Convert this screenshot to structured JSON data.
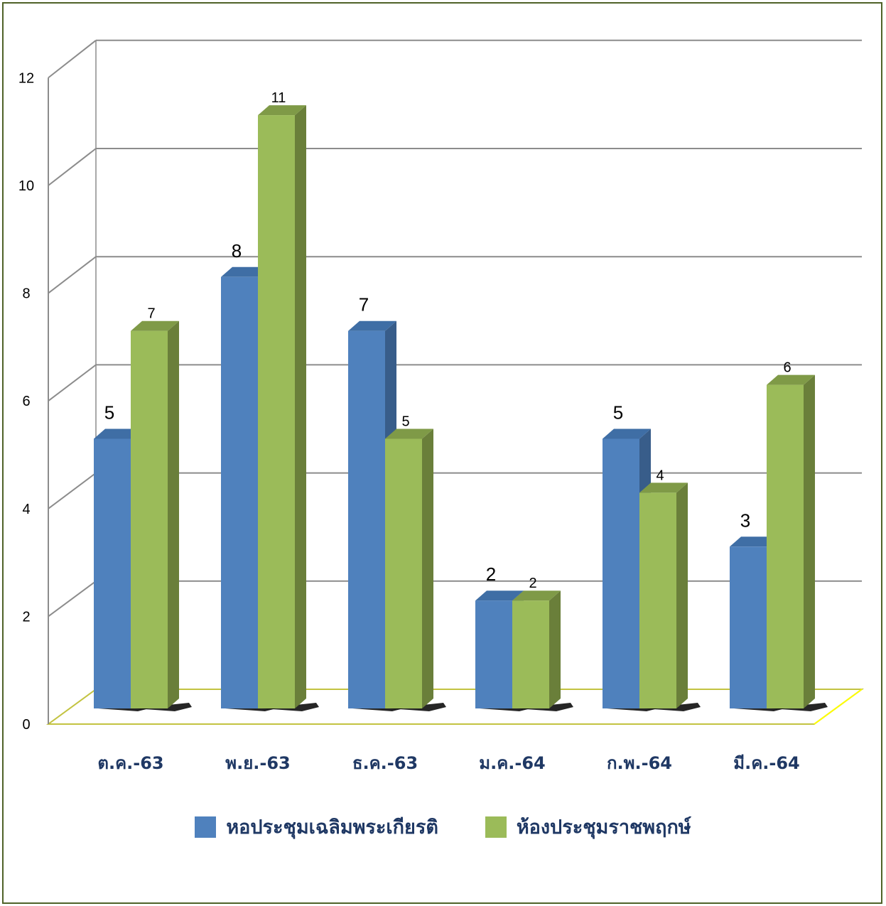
{
  "chart_data": {
    "type": "bar",
    "categories": [
      "ต.ค.-63",
      "พ.ย.-63",
      "ธ.ค.-63",
      "ม.ค.-64",
      "ก.พ.-64",
      "มี.ค.-64"
    ],
    "series": [
      {
        "name": "หอประชุมเฉลิมพระเกียรติ",
        "values": [
          5,
          8,
          7,
          2,
          5,
          3
        ],
        "color": "#4f81bd",
        "side_color": "#385d8a",
        "top_color": "#3f6ea5"
      },
      {
        "name": "ห้องประชุมราชพฤกษ์",
        "values": [
          7,
          11,
          5,
          2,
          4,
          6
        ],
        "color": "#9bbb59",
        "side_color": "#6a7f3a",
        "top_color": "#7f9a47"
      }
    ],
    "y_ticks": [
      "0",
      "2",
      "4",
      "6",
      "8",
      "10",
      "12"
    ],
    "ylim": [
      0,
      12
    ],
    "grid": true,
    "legend_position": "bottom",
    "title": "",
    "xlabel": "",
    "ylabel": ""
  }
}
